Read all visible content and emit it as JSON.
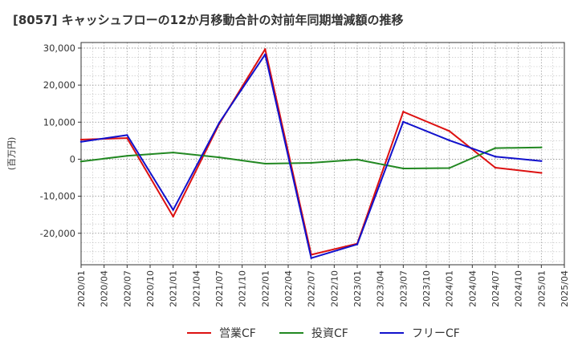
{
  "chart_data": {
    "type": "line",
    "title": "[8057]  キャッシュフローの12か月移動合計の対前年同期増減額の推移",
    "xlabel": "",
    "ylabel": "(百万円)",
    "ylim": [
      -28500,
      31500
    ],
    "yticks": [
      30000,
      20000,
      10000,
      0,
      -10000,
      -20000
    ],
    "ytick_labels": [
      "30,000",
      "20,000",
      "10,000",
      "0",
      "-10,000",
      "-20,000"
    ],
    "x_ticks": [
      "2020/01",
      "2020/04",
      "2020/07",
      "2020/10",
      "2021/01",
      "2021/04",
      "2021/07",
      "2021/10",
      "2022/01",
      "2022/04",
      "2022/07",
      "2022/10",
      "2023/01",
      "2023/04",
      "2023/07",
      "2023/10",
      "2024/01",
      "2024/04",
      "2024/07",
      "2024/10",
      "2025/01",
      "2025/04"
    ],
    "grid": true,
    "legend_position": "bottom",
    "series": [
      {
        "name": "営業CF",
        "color": "#dd1111",
        "x": [
          "2020/01",
          "2020/07",
          "2021/01",
          "2021/07",
          "2022/01",
          "2022/07",
          "2023/01",
          "2023/07",
          "2024/01",
          "2024/07",
          "2025/01"
        ],
        "values": [
          5300,
          5700,
          -15500,
          9500,
          29700,
          -25800,
          -22800,
          12800,
          7600,
          -2300,
          -3700
        ]
      },
      {
        "name": "投資CF",
        "color": "#228822",
        "x": [
          "2020/01",
          "2020/07",
          "2021/01",
          "2021/07",
          "2022/01",
          "2022/07",
          "2023/01",
          "2023/07",
          "2024/01",
          "2024/07",
          "2025/01"
        ],
        "values": [
          -600,
          900,
          1800,
          500,
          -1200,
          -1000,
          -100,
          -2500,
          -2400,
          3000,
          3200
        ]
      },
      {
        "name": "フリーCF",
        "color": "#1111cc",
        "x": [
          "2020/01",
          "2020/07",
          "2021/01",
          "2021/07",
          "2022/01",
          "2022/07",
          "2023/01",
          "2023/07",
          "2024/01",
          "2024/07",
          "2025/01"
        ],
        "values": [
          4700,
          6500,
          -13700,
          9800,
          28300,
          -26700,
          -23000,
          10100,
          5100,
          700,
          -500
        ]
      }
    ]
  }
}
